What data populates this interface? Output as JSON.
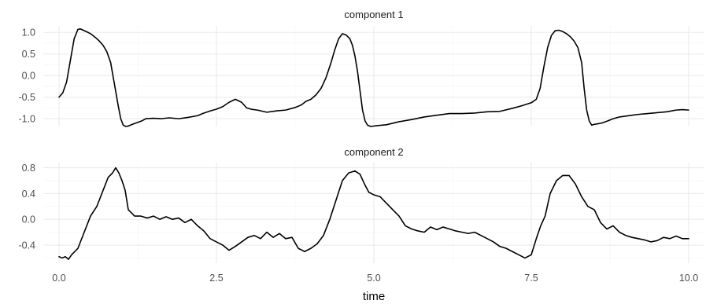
{
  "chart_data": [
    {
      "type": "line",
      "title": "component 1",
      "xlim": [
        -0.25,
        10.25
      ],
      "ylim": [
        -1.18,
        1.15
      ],
      "x_ticks": [
        0,
        2.5,
        5,
        7.5,
        10
      ],
      "y_ticks": [
        -1.0,
        -0.5,
        0.0,
        0.5,
        1.0
      ],
      "y_tick_labels": [
        "-1.0",
        "-0.5",
        "0.0",
        "0.5",
        "1.0"
      ],
      "grid": true,
      "series": [
        {
          "x": [
            0.0,
            0.06,
            0.12,
            0.18,
            0.24,
            0.3,
            0.34,
            0.4,
            0.46,
            0.52,
            0.58,
            0.64,
            0.7,
            0.76,
            0.82,
            0.88,
            0.94,
            0.98,
            1.02,
            1.06,
            1.1,
            1.15,
            1.22,
            1.3,
            1.38,
            1.5,
            1.62,
            1.75,
            1.9,
            2.05,
            2.2,
            2.3,
            2.4,
            2.5,
            2.6,
            2.7,
            2.8,
            2.9,
            2.98,
            3.05,
            3.15,
            3.3,
            3.45,
            3.6,
            3.75,
            3.85,
            3.92,
            4.0,
            4.08,
            4.16,
            4.24,
            4.32,
            4.38,
            4.44,
            4.5,
            4.56,
            4.62,
            4.66,
            4.7,
            4.74,
            4.78,
            4.82,
            4.86,
            4.9,
            4.95,
            5.05,
            5.2,
            5.4,
            5.6,
            5.8,
            6.0,
            6.2,
            6.4,
            6.6,
            6.8,
            7.0,
            7.2,
            7.35,
            7.5,
            7.58,
            7.64,
            7.7,
            7.76,
            7.82,
            7.88,
            7.94,
            8.0,
            8.06,
            8.12,
            8.18,
            8.24,
            8.3,
            8.34,
            8.38,
            8.42,
            8.46,
            8.5,
            8.55,
            8.62,
            8.7,
            8.8,
            8.9,
            9.0,
            9.1,
            9.2,
            9.35,
            9.5,
            9.65,
            9.8,
            9.9,
            10.0
          ],
          "y": [
            -0.5,
            -0.4,
            -0.15,
            0.35,
            0.85,
            1.07,
            1.08,
            1.04,
            1.0,
            0.95,
            0.88,
            0.8,
            0.7,
            0.55,
            0.3,
            -0.2,
            -0.7,
            -1.0,
            -1.15,
            -1.18,
            -1.17,
            -1.14,
            -1.1,
            -1.06,
            -1.0,
            -0.99,
            -1.0,
            -0.98,
            -1.0,
            -0.97,
            -0.93,
            -0.87,
            -0.82,
            -0.78,
            -0.72,
            -0.62,
            -0.55,
            -0.62,
            -0.75,
            -0.78,
            -0.8,
            -0.85,
            -0.82,
            -0.8,
            -0.74,
            -0.68,
            -0.6,
            -0.55,
            -0.45,
            -0.3,
            -0.05,
            0.3,
            0.6,
            0.85,
            0.97,
            0.94,
            0.85,
            0.7,
            0.45,
            0.1,
            -0.35,
            -0.8,
            -1.05,
            -1.15,
            -1.18,
            -1.16,
            -1.14,
            -1.07,
            -1.02,
            -0.96,
            -0.92,
            -0.88,
            -0.88,
            -0.87,
            -0.84,
            -0.83,
            -0.76,
            -0.7,
            -0.63,
            -0.55,
            -0.3,
            0.2,
            0.65,
            0.93,
            1.04,
            1.05,
            1.02,
            0.97,
            0.9,
            0.8,
            0.65,
            0.3,
            -0.3,
            -0.8,
            -1.05,
            -1.15,
            -1.13,
            -1.12,
            -1.1,
            -1.06,
            -1.0,
            -0.96,
            -0.94,
            -0.92,
            -0.9,
            -0.88,
            -0.86,
            -0.84,
            -0.8,
            -0.79,
            -0.8
          ]
        }
      ]
    },
    {
      "type": "line",
      "title": "component 2",
      "xlabel": "time",
      "xlim": [
        -0.25,
        10.25
      ],
      "ylim": [
        -0.68,
        0.88
      ],
      "x_ticks": [
        0,
        2.5,
        5,
        7.5,
        10
      ],
      "x_tick_labels": [
        "0.0",
        "2.5",
        "5.0",
        "7.5",
        "10.0"
      ],
      "y_ticks": [
        -0.4,
        0.0,
        0.4,
        0.8
      ],
      "y_tick_labels": [
        "-0.4",
        "0.0",
        "0.4",
        "0.8"
      ],
      "grid": true,
      "series": [
        {
          "x": [
            0.0,
            0.05,
            0.1,
            0.15,
            0.2,
            0.3,
            0.4,
            0.5,
            0.6,
            0.7,
            0.78,
            0.85,
            0.9,
            0.95,
            1.0,
            1.05,
            1.1,
            1.2,
            1.3,
            1.4,
            1.5,
            1.6,
            1.7,
            1.8,
            1.9,
            2.0,
            2.1,
            2.2,
            2.3,
            2.4,
            2.5,
            2.6,
            2.7,
            2.8,
            2.9,
            3.0,
            3.1,
            3.2,
            3.3,
            3.4,
            3.5,
            3.6,
            3.7,
            3.8,
            3.9,
            4.0,
            4.1,
            4.2,
            4.3,
            4.4,
            4.5,
            4.6,
            4.7,
            4.78,
            4.85,
            4.92,
            5.0,
            5.1,
            5.2,
            5.3,
            5.4,
            5.5,
            5.6,
            5.7,
            5.8,
            5.9,
            6.0,
            6.1,
            6.2,
            6.3,
            6.4,
            6.5,
            6.6,
            6.7,
            6.8,
            6.9,
            7.0,
            7.1,
            7.2,
            7.3,
            7.4,
            7.5,
            7.58,
            7.65,
            7.72,
            7.8,
            7.9,
            8.0,
            8.1,
            8.2,
            8.3,
            8.4,
            8.5,
            8.6,
            8.7,
            8.8,
            8.9,
            9.0,
            9.1,
            9.2,
            9.3,
            9.4,
            9.5,
            9.6,
            9.7,
            9.8,
            9.9,
            10.0
          ],
          "y": [
            -0.58,
            -0.6,
            -0.58,
            -0.62,
            -0.55,
            -0.45,
            -0.2,
            0.05,
            0.2,
            0.45,
            0.65,
            0.72,
            0.8,
            0.72,
            0.6,
            0.45,
            0.15,
            0.05,
            0.05,
            0.02,
            0.05,
            0.0,
            0.04,
            0.0,
            0.02,
            -0.05,
            0.0,
            -0.1,
            -0.18,
            -0.3,
            -0.35,
            -0.4,
            -0.48,
            -0.42,
            -0.35,
            -0.28,
            -0.25,
            -0.3,
            -0.2,
            -0.28,
            -0.22,
            -0.3,
            -0.28,
            -0.45,
            -0.5,
            -0.45,
            -0.38,
            -0.25,
            0.0,
            0.3,
            0.6,
            0.72,
            0.75,
            0.7,
            0.55,
            0.42,
            0.38,
            0.35,
            0.25,
            0.15,
            0.05,
            -0.1,
            -0.15,
            -0.18,
            -0.2,
            -0.12,
            -0.16,
            -0.12,
            -0.15,
            -0.18,
            -0.2,
            -0.22,
            -0.2,
            -0.25,
            -0.3,
            -0.35,
            -0.42,
            -0.45,
            -0.5,
            -0.55,
            -0.6,
            -0.55,
            -0.3,
            -0.1,
            0.05,
            0.4,
            0.6,
            0.68,
            0.68,
            0.55,
            0.35,
            0.2,
            0.15,
            -0.05,
            -0.15,
            -0.1,
            -0.2,
            -0.25,
            -0.28,
            -0.3,
            -0.32,
            -0.35,
            -0.33,
            -0.28,
            -0.3,
            -0.26,
            -0.3,
            -0.3
          ]
        }
      ]
    }
  ]
}
